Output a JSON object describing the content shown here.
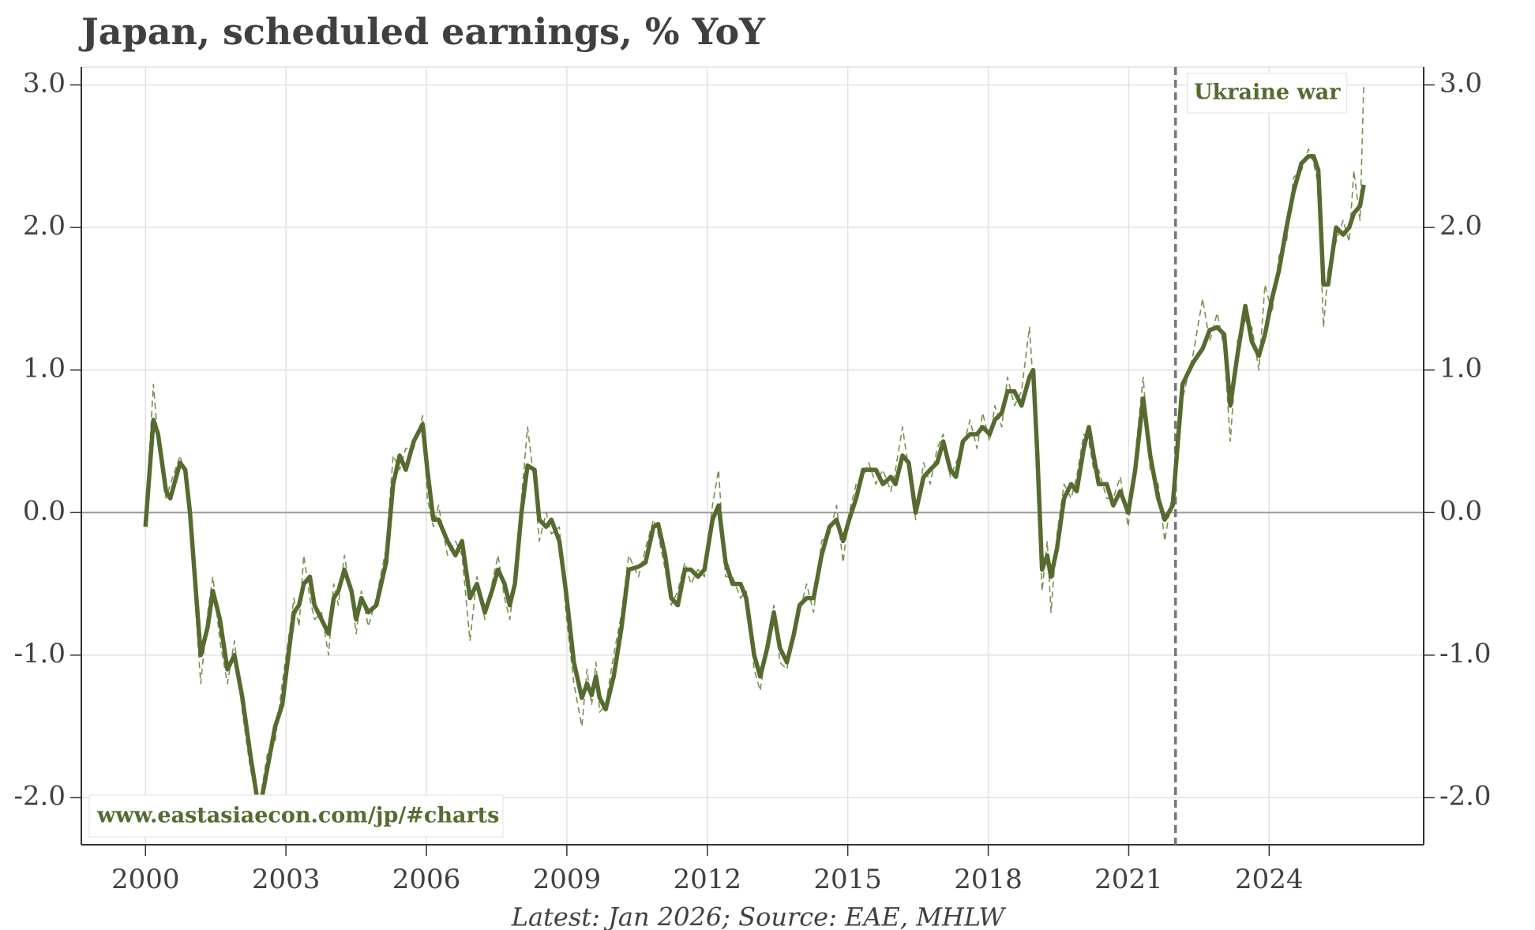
{
  "chart_data": {
    "type": "line",
    "title": "Japan, scheduled earnings, % YoY",
    "source": "Latest: Jan 2026; Source: EAE, MHLW",
    "watermark": "www.eastasiaecon.com/jp/#charts",
    "annotation": {
      "x": 2022.0,
      "label": "Ukraine war"
    },
    "x": [
      2000,
      2000.17,
      2000.27,
      2000.44,
      2000.53,
      2000.74,
      2000.85,
      2000.95,
      2001.18,
      2001.33,
      2001.44,
      2001.59,
      2001.75,
      2001.9,
      2002.07,
      2002.24,
      2002.43,
      2002.6,
      2002.77,
      2002.92,
      2003.09,
      2003.17,
      2003.28,
      2003.38,
      2003.51,
      2003.61,
      2003.76,
      2003.91,
      2004.02,
      2004.12,
      2004.25,
      2004.4,
      2004.5,
      2004.61,
      2004.76,
      2004.93,
      2005.14,
      2005.29,
      2005.43,
      2005.56,
      2005.73,
      2005.92,
      2006.02,
      2006.15,
      2006.26,
      2006.45,
      2006.62,
      2006.76,
      2006.93,
      2007.08,
      2007.25,
      2007.4,
      2007.53,
      2007.67,
      2007.78,
      2007.89,
      2008.03,
      2008.16,
      2008.31,
      2008.41,
      2008.56,
      2008.67,
      2008.84,
      2008.98,
      2009.15,
      2009.32,
      2009.43,
      2009.53,
      2009.62,
      2009.7,
      2009.83,
      2010,
      2010.17,
      2010.32,
      2010.53,
      2010.68,
      2010.85,
      2010.95,
      2011.1,
      2011.23,
      2011.37,
      2011.52,
      2011.65,
      2011.8,
      2011.94,
      2012.11,
      2012.24,
      2012.39,
      2012.54,
      2012.71,
      2012.83,
      2013,
      2013.13,
      2013.28,
      2013.42,
      2013.55,
      2013.7,
      2013.85,
      2013.97,
      2014.12,
      2014.27,
      2014.44,
      2014.61,
      2014.76,
      2014.9,
      2015.03,
      2015.18,
      2015.33,
      2015.45,
      2015.6,
      2015.75,
      2015.92,
      2016.02,
      2016.17,
      2016.3,
      2016.45,
      2016.62,
      2016.76,
      2016.91,
      2017.04,
      2017.19,
      2017.31,
      2017.46,
      2017.61,
      2017.76,
      2017.88,
      2018.03,
      2018.14,
      2018.29,
      2018.41,
      2018.56,
      2018.71,
      2018.88,
      2018.96,
      2019.05,
      2019.15,
      2019.26,
      2019.34,
      2019.47,
      2019.62,
      2019.77,
      2019.89,
      2020.04,
      2020.15,
      2020.25,
      2020.36,
      2020.53,
      2020.67,
      2020.82,
      2020.99,
      2021.14,
      2021.31,
      2021.46,
      2021.63,
      2021.77,
      2021.94,
      2022.15,
      2022.37,
      2022.58,
      2022.73,
      2022.89,
      2023.04,
      2023.17,
      2023.32,
      2023.49,
      2023.63,
      2023.78,
      2023.91,
      2024.06,
      2024.21,
      2024.37,
      2024.52,
      2024.69,
      2024.84,
      2024.95,
      2025.05,
      2025.16,
      2025.26,
      2025.43,
      2025.58,
      2025.71,
      2025.81,
      2025.94,
      2026.02
    ],
    "series": [
      {
        "color": "#7a8f50",
        "dashed": true,
        "values": [
          -0.05,
          0.9,
          0.5,
          0.1,
          0.2,
          0.4,
          0.25,
          -0.1,
          -1.2,
          -0.7,
          -0.45,
          -0.9,
          -1.2,
          -0.9,
          -1.4,
          -1.8,
          -2.05,
          -1.7,
          -1.6,
          -1.2,
          -0.8,
          -0.6,
          -0.8,
          -0.3,
          -0.6,
          -0.75,
          -0.7,
          -1.0,
          -0.5,
          -0.65,
          -0.3,
          -0.6,
          -0.85,
          -0.55,
          -0.8,
          -0.6,
          -0.25,
          0.4,
          0.3,
          0.45,
          0.45,
          0.68,
          0.1,
          -0.1,
          0.05,
          -0.3,
          -0.2,
          -0.3,
          -0.9,
          -0.45,
          -0.75,
          -0.5,
          -0.3,
          -0.6,
          -0.75,
          -0.45,
          0.1,
          0.6,
          0.2,
          -0.2,
          0.0,
          -0.15,
          -0.1,
          -0.7,
          -1.2,
          -1.5,
          -1.1,
          -1.35,
          -1.05,
          -1.4,
          -1.35,
          -1.0,
          -0.7,
          -0.3,
          -0.45,
          -0.25,
          -0.05,
          -0.15,
          -0.4,
          -0.65,
          -0.55,
          -0.35,
          -0.5,
          -0.4,
          -0.45,
          0.05,
          0.3,
          -0.45,
          -0.45,
          -0.6,
          -0.55,
          -1.1,
          -1.25,
          -0.9,
          -0.65,
          -1.05,
          -1.1,
          -0.8,
          -0.7,
          -0.5,
          -0.7,
          -0.2,
          -0.15,
          0.05,
          -0.35,
          0.0,
          0.2,
          0.25,
          0.35,
          0.2,
          0.3,
          0.15,
          0.3,
          0.6,
          0.3,
          -0.05,
          0.35,
          0.2,
          0.45,
          0.55,
          0.25,
          0.35,
          0.45,
          0.65,
          0.45,
          0.7,
          0.5,
          0.75,
          0.6,
          0.95,
          0.75,
          0.85,
          1.3,
          0.9,
          0.3,
          -0.55,
          -0.2,
          -0.7,
          -0.15,
          0.2,
          0.1,
          0.25,
          0.55,
          0.5,
          0.3,
          0.3,
          0.1,
          0.1,
          0.25,
          -0.1,
          0.4,
          0.95,
          0.3,
          0.2,
          -0.2,
          0.15,
          0.8,
          1.1,
          1.5,
          1.2,
          1.4,
          1.15,
          0.5,
          1.2,
          1.35,
          1.3,
          1.0,
          1.6,
          1.4,
          1.8,
          1.9,
          2.35,
          2.4,
          2.55,
          2.45,
          2.3,
          1.3,
          1.7,
          1.9,
          2.05,
          1.9,
          2.4,
          2.05,
          3.0
        ]
      },
      {
        "color": "#556b2f",
        "dashed": false,
        "values": [
          -0.1,
          0.65,
          0.55,
          0.15,
          0.1,
          0.35,
          0.3,
          0.0,
          -1.0,
          -0.8,
          -0.55,
          -0.75,
          -1.1,
          -1.0,
          -1.3,
          -1.7,
          -2.1,
          -1.8,
          -1.5,
          -1.35,
          -0.9,
          -0.7,
          -0.65,
          -0.5,
          -0.45,
          -0.65,
          -0.75,
          -0.85,
          -0.6,
          -0.55,
          -0.4,
          -0.55,
          -0.75,
          -0.6,
          -0.7,
          -0.65,
          -0.35,
          0.2,
          0.4,
          0.3,
          0.5,
          0.62,
          0.3,
          -0.05,
          -0.05,
          -0.2,
          -0.3,
          -0.2,
          -0.6,
          -0.5,
          -0.7,
          -0.55,
          -0.4,
          -0.5,
          -0.65,
          -0.5,
          0.0,
          0.33,
          0.3,
          -0.05,
          -0.1,
          -0.05,
          -0.2,
          -0.55,
          -1.05,
          -1.3,
          -1.2,
          -1.28,
          -1.15,
          -1.3,
          -1.38,
          -1.15,
          -0.8,
          -0.4,
          -0.38,
          -0.35,
          -0.1,
          -0.08,
          -0.3,
          -0.6,
          -0.65,
          -0.4,
          -0.4,
          -0.45,
          -0.4,
          -0.05,
          0.05,
          -0.35,
          -0.5,
          -0.5,
          -0.6,
          -1.0,
          -1.15,
          -0.95,
          -0.7,
          -0.95,
          -1.05,
          -0.85,
          -0.65,
          -0.6,
          -0.6,
          -0.3,
          -0.1,
          -0.05,
          -0.2,
          -0.05,
          0.1,
          0.3,
          0.3,
          0.3,
          0.2,
          0.25,
          0.2,
          0.4,
          0.35,
          0.0,
          0.25,
          0.3,
          0.35,
          0.5,
          0.3,
          0.25,
          0.5,
          0.55,
          0.55,
          0.6,
          0.55,
          0.65,
          0.7,
          0.85,
          0.85,
          0.75,
          0.95,
          1.0,
          0.4,
          -0.4,
          -0.3,
          -0.45,
          -0.25,
          0.1,
          0.2,
          0.15,
          0.45,
          0.6,
          0.4,
          0.2,
          0.2,
          0.05,
          0.15,
          0.0,
          0.3,
          0.8,
          0.4,
          0.1,
          -0.05,
          0.05,
          0.9,
          1.05,
          1.15,
          1.28,
          1.3,
          1.25,
          0.75,
          1.1,
          1.45,
          1.2,
          1.1,
          1.25,
          1.5,
          1.7,
          2.0,
          2.25,
          2.45,
          2.5,
          2.5,
          2.4,
          1.6,
          1.6,
          2.0,
          1.95,
          2.0,
          2.1,
          2.15,
          2.3
        ]
      }
    ],
    "xlim": [
      1998.63,
      2027.3
    ],
    "xticks": [
      2000,
      2003,
      2006,
      2009,
      2012,
      2015,
      2018,
      2021,
      2024
    ],
    "ylim": [
      -2.33,
      3.125
    ],
    "yticks": [
      {
        "value": -2,
        "label": "-2.0"
      },
      {
        "value": -1,
        "label": "-1.0"
      },
      {
        "value": 0,
        "label": "0.0"
      },
      {
        "value": 1,
        "label": "1.0"
      },
      {
        "value": 2,
        "label": "2.0"
      },
      {
        "value": 3,
        "label": "3.0"
      }
    ],
    "grid": true,
    "right_axis": true
  }
}
